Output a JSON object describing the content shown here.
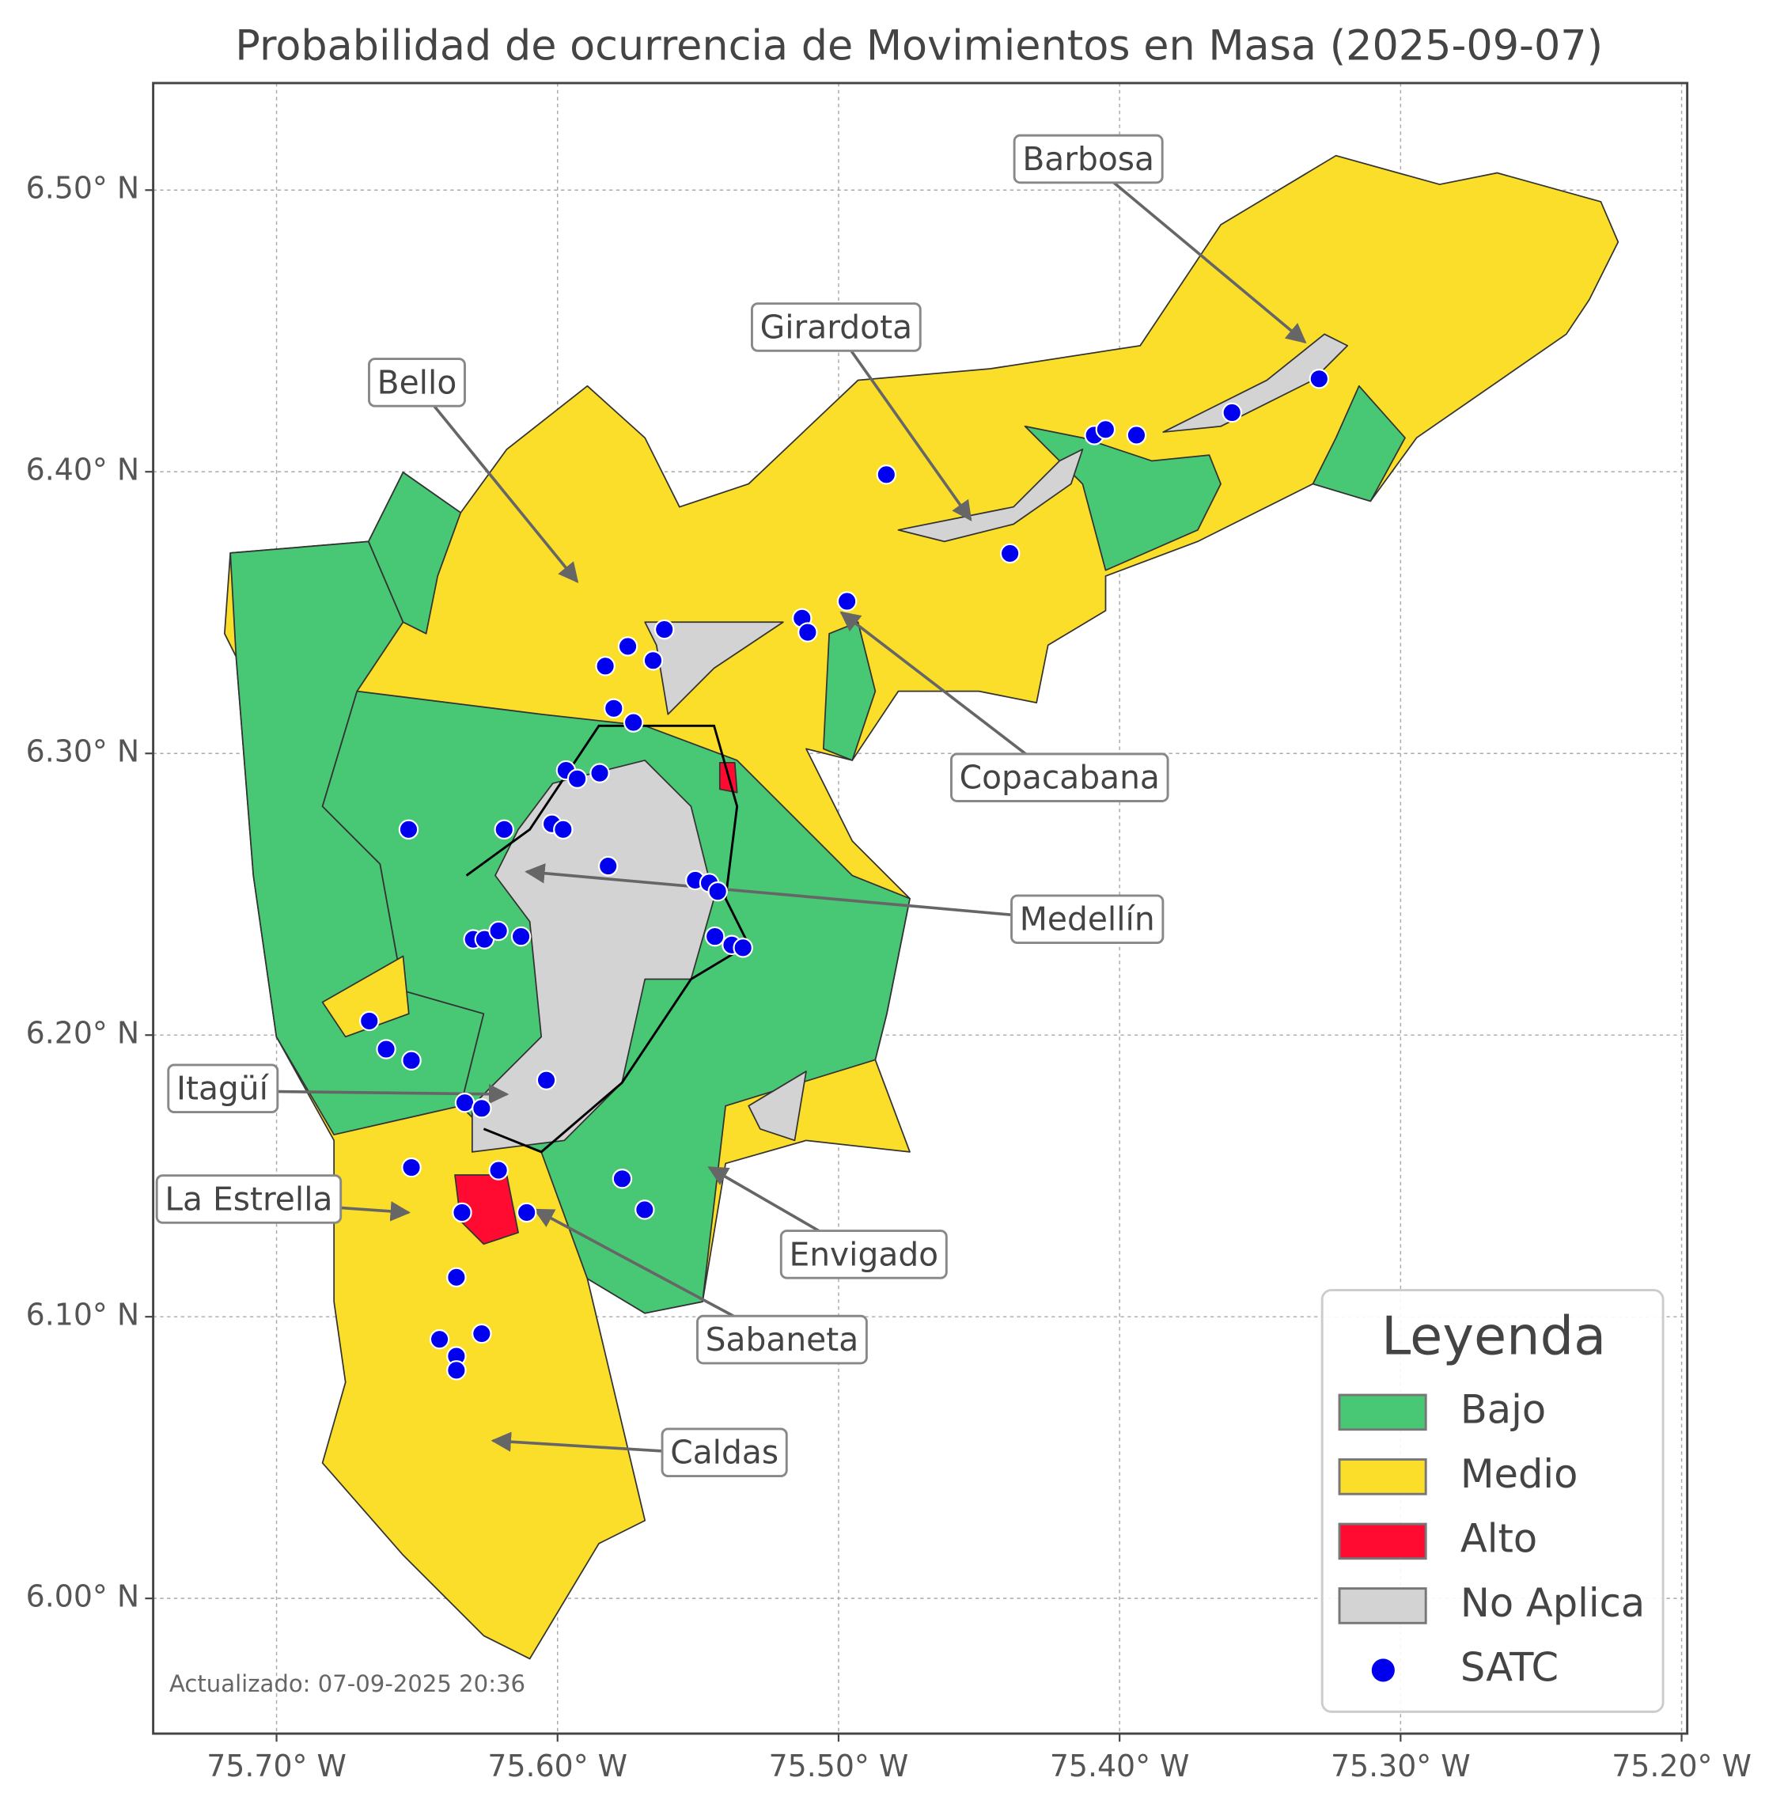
{
  "chart_data": {
    "type": "map",
    "title": "Probabilidad de ocurrencia de Movimientos en Masa (2025-09-07)",
    "xlim": [
      -75.7439,
      -75.198
    ],
    "ylim": [
      5.952,
      6.538
    ],
    "xticks": [
      {
        "value": -75.7,
        "label": "75.70° W"
      },
      {
        "value": -75.6,
        "label": "75.60° W"
      },
      {
        "value": -75.5,
        "label": "75.50° W"
      },
      {
        "value": -75.4,
        "label": "75.40° W"
      },
      {
        "value": -75.3,
        "label": "75.30° W"
      },
      {
        "value": -75.2,
        "label": "75.20° W"
      }
    ],
    "yticks": [
      {
        "value": 6.0,
        "label": "6.00° N"
      },
      {
        "value": 6.1,
        "label": "6.10° N"
      },
      {
        "value": 6.2,
        "label": "6.20° N"
      },
      {
        "value": 6.3,
        "label": "6.30° N"
      },
      {
        "value": 6.4,
        "label": "6.40° N"
      },
      {
        "value": 6.5,
        "label": "6.50° N"
      }
    ],
    "grid": true,
    "legend": {
      "title": "Leyenda",
      "loc": "lower right",
      "entries": [
        {
          "label": "Bajo",
          "color": "#48c774"
        },
        {
          "label": "Medio",
          "color": "#fbde2a"
        },
        {
          "label": "Alto",
          "color": "#ff0a31"
        },
        {
          "label": "No Aplica",
          "color": "#d3d3d3"
        }
      ]
    },
    "points": {
      "name": "SATC",
      "color": "#0000ee",
      "lon": [
        -75.483,
        -75.409,
        -75.405,
        -75.394,
        -75.36,
        -75.329,
        -75.439,
        -75.497,
        -75.513,
        -75.511,
        -75.562,
        -75.575,
        -75.566,
        -75.583,
        -75.58,
        -75.573,
        -75.597,
        -75.593,
        -75.585,
        -75.653,
        -75.619,
        -75.602,
        -75.598,
        -75.582,
        -75.551,
        -75.546,
        -75.543,
        -75.544,
        -75.538,
        -75.534,
        -75.63,
        -75.626,
        -75.621,
        -75.613,
        -75.667,
        -75.661,
        -75.652,
        -75.604,
        -75.633,
        -75.627,
        -75.652,
        -75.621,
        -75.577,
        -75.569,
        -75.634,
        -75.611,
        -75.636,
        -75.642,
        -75.627,
        -75.636,
        -75.636
      ],
      "lat": [
        6.399,
        6.413,
        6.415,
        6.413,
        6.421,
        6.433,
        6.371,
        6.354,
        6.348,
        6.343,
        6.344,
        6.338,
        6.333,
        6.331,
        6.316,
        6.311,
        6.294,
        6.291,
        6.293,
        6.273,
        6.273,
        6.275,
        6.273,
        6.26,
        6.255,
        6.254,
        6.251,
        6.235,
        6.232,
        6.231,
        6.234,
        6.234,
        6.237,
        6.235,
        6.205,
        6.195,
        6.191,
        6.184,
        6.176,
        6.174,
        6.153,
        6.152,
        6.149,
        6.138,
        6.137,
        6.137,
        6.114,
        6.092,
        6.094,
        6.086,
        6.081
      ]
    },
    "annotations": [
      {
        "text": "Barbosa",
        "lon": -75.334,
        "lat": 6.446
      },
      {
        "text": "Girardota",
        "lon": -75.453,
        "lat": 6.383
      },
      {
        "text": "Bello",
        "lon": -75.593,
        "lat": 6.361
      },
      {
        "text": "Copacabana",
        "lon": -75.499,
        "lat": 6.35
      },
      {
        "text": "Medellín",
        "lon": -75.611,
        "lat": 6.258
      },
      {
        "text": "Itagüí",
        "lon": -75.618,
        "lat": 6.179
      },
      {
        "text": "La Estrella",
        "lon": -75.653,
        "lat": 6.137
      },
      {
        "text": "Envigado",
        "lon": -75.546,
        "lat": 6.153
      },
      {
        "text": "Sabaneta",
        "lon": -75.608,
        "lat": 6.138
      },
      {
        "text": "Caldas",
        "lon": -75.623,
        "lat": 6.056
      }
    ],
    "footnote": "Actualizado: 07-09-2025 20:36"
  }
}
